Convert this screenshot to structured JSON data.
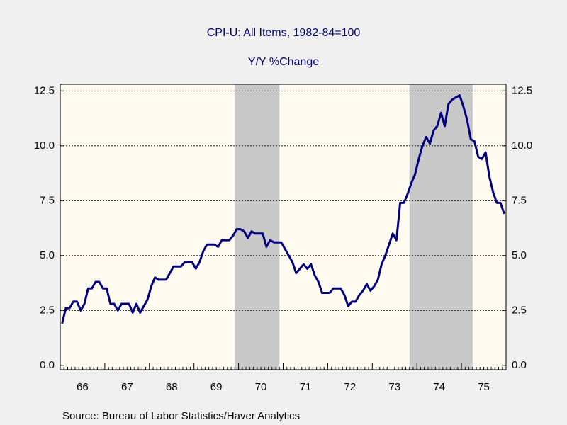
{
  "chart_data": {
    "type": "line",
    "title": "CPI-U: All Items, 1982-84=100",
    "subtitle": "Y/Y %Change",
    "source": "Source:  Bureau of Labor Statistics/Haver Analytics",
    "x_labels": [
      "66",
      "67",
      "68",
      "69",
      "70",
      "71",
      "72",
      "73",
      "74",
      "75"
    ],
    "series": [
      {
        "name": "CPI-U",
        "color": "#000080",
        "values": [
          1.9,
          2.6,
          2.6,
          2.9,
          2.9,
          2.5,
          2.8,
          3.5,
          3.5,
          3.8,
          3.8,
          3.5,
          3.5,
          2.8,
          2.8,
          2.5,
          2.8,
          2.8,
          2.8,
          2.4,
          2.8,
          2.4,
          2.7,
          3.0,
          3.6,
          4.0,
          3.9,
          3.9,
          3.9,
          4.2,
          4.5,
          4.5,
          4.5,
          4.7,
          4.7,
          4.7,
          4.4,
          4.7,
          5.2,
          5.5,
          5.5,
          5.5,
          5.4,
          5.7,
          5.7,
          5.7,
          5.9,
          6.2,
          6.2,
          6.1,
          5.8,
          6.1,
          6.0,
          6.0,
          6.0,
          5.4,
          5.7,
          5.6,
          5.6,
          5.6,
          5.3,
          5.0,
          4.7,
          4.2,
          4.4,
          4.6,
          4.4,
          4.6,
          4.1,
          3.8,
          3.3,
          3.3,
          3.3,
          3.5,
          3.5,
          3.5,
          3.2,
          2.7,
          2.9,
          2.9,
          3.2,
          3.4,
          3.7,
          3.4,
          3.6,
          3.9,
          4.6,
          5.0,
          5.5,
          6.0,
          5.7,
          7.4,
          7.4,
          7.8,
          8.3,
          8.7,
          9.4,
          10.0,
          10.4,
          10.1,
          10.7,
          10.9,
          11.5,
          10.9,
          11.9,
          12.1,
          12.2,
          12.3,
          11.8,
          11.2,
          10.3,
          10.2,
          9.5,
          9.4,
          9.7,
          8.6,
          7.9,
          7.4,
          7.4,
          6.9
        ]
      }
    ],
    "recessions": [
      [
        47,
        58
      ],
      [
        94,
        110
      ]
    ],
    "recession_color": "#c8c8c8",
    "plot_background": "#fffbf0",
    "ylim": [
      -0.2,
      12.8
    ],
    "yticks": [
      {
        "value": 0,
        "label": "0.0"
      },
      2.5,
      {
        "value": 5,
        "label": "5.0"
      },
      7.5,
      {
        "value": 10,
        "label": "10.0"
      },
      12.5
    ],
    "grid": true
  }
}
